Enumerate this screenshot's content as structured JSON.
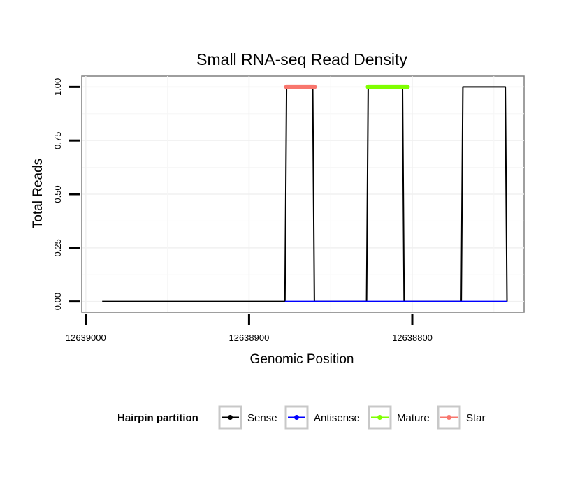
{
  "chart_data": {
    "type": "line",
    "title": "Small RNA-seq Read Density",
    "xlabel": "Genomic Position",
    "ylabel": "Total Reads",
    "x_reversed": true,
    "xlim": [
      12639002.5,
      12638731.5
    ],
    "ylim": [
      -0.05,
      1.05
    ],
    "x_ticks": [
      12639000,
      12638900,
      12638800
    ],
    "x_tick_labels": [
      "12639000",
      "12638900",
      "12638800"
    ],
    "y_ticks": [
      0,
      0.25,
      0.5,
      0.75,
      1.0
    ],
    "y_tick_labels": [
      "0.00",
      "0.25",
      "0.50",
      "0.75",
      "1.00"
    ],
    "grid": true,
    "legend": {
      "title": "Hairpin partition",
      "position": "bottom",
      "entries": [
        {
          "name": "Sense",
          "color": "#000000"
        },
        {
          "name": "Antisense",
          "color": "#0000FF"
        },
        {
          "name": "Mature",
          "color": "#7FFF00"
        },
        {
          "name": "Star",
          "color": "#F8766D"
        }
      ]
    },
    "series": [
      {
        "name": "Sense",
        "color": "#000000",
        "x": [
          12638990,
          12638878,
          12638877,
          12638861,
          12638860,
          12638828,
          12638827,
          12638806,
          12638805,
          12638770,
          12638769,
          12638743,
          12638742
        ],
        "y": [
          0,
          0,
          1,
          1,
          0,
          0,
          1,
          1,
          0,
          0,
          1,
          1,
          0
        ]
      },
      {
        "name": "Antisense",
        "color": "#0000FF",
        "x": [
          12638878,
          12638860,
          12638827,
          12638805,
          12638770,
          12638742
        ],
        "y": [
          0,
          0,
          0,
          0,
          0,
          0
        ]
      },
      {
        "name": "Mature",
        "color": "#7FFF00",
        "x": [
          12638827,
          12638803
        ],
        "y": [
          1,
          1
        ]
      },
      {
        "name": "Star",
        "color": "#F8766D",
        "x": [
          12638877,
          12638860
        ],
        "y": [
          1,
          1
        ]
      }
    ]
  }
}
